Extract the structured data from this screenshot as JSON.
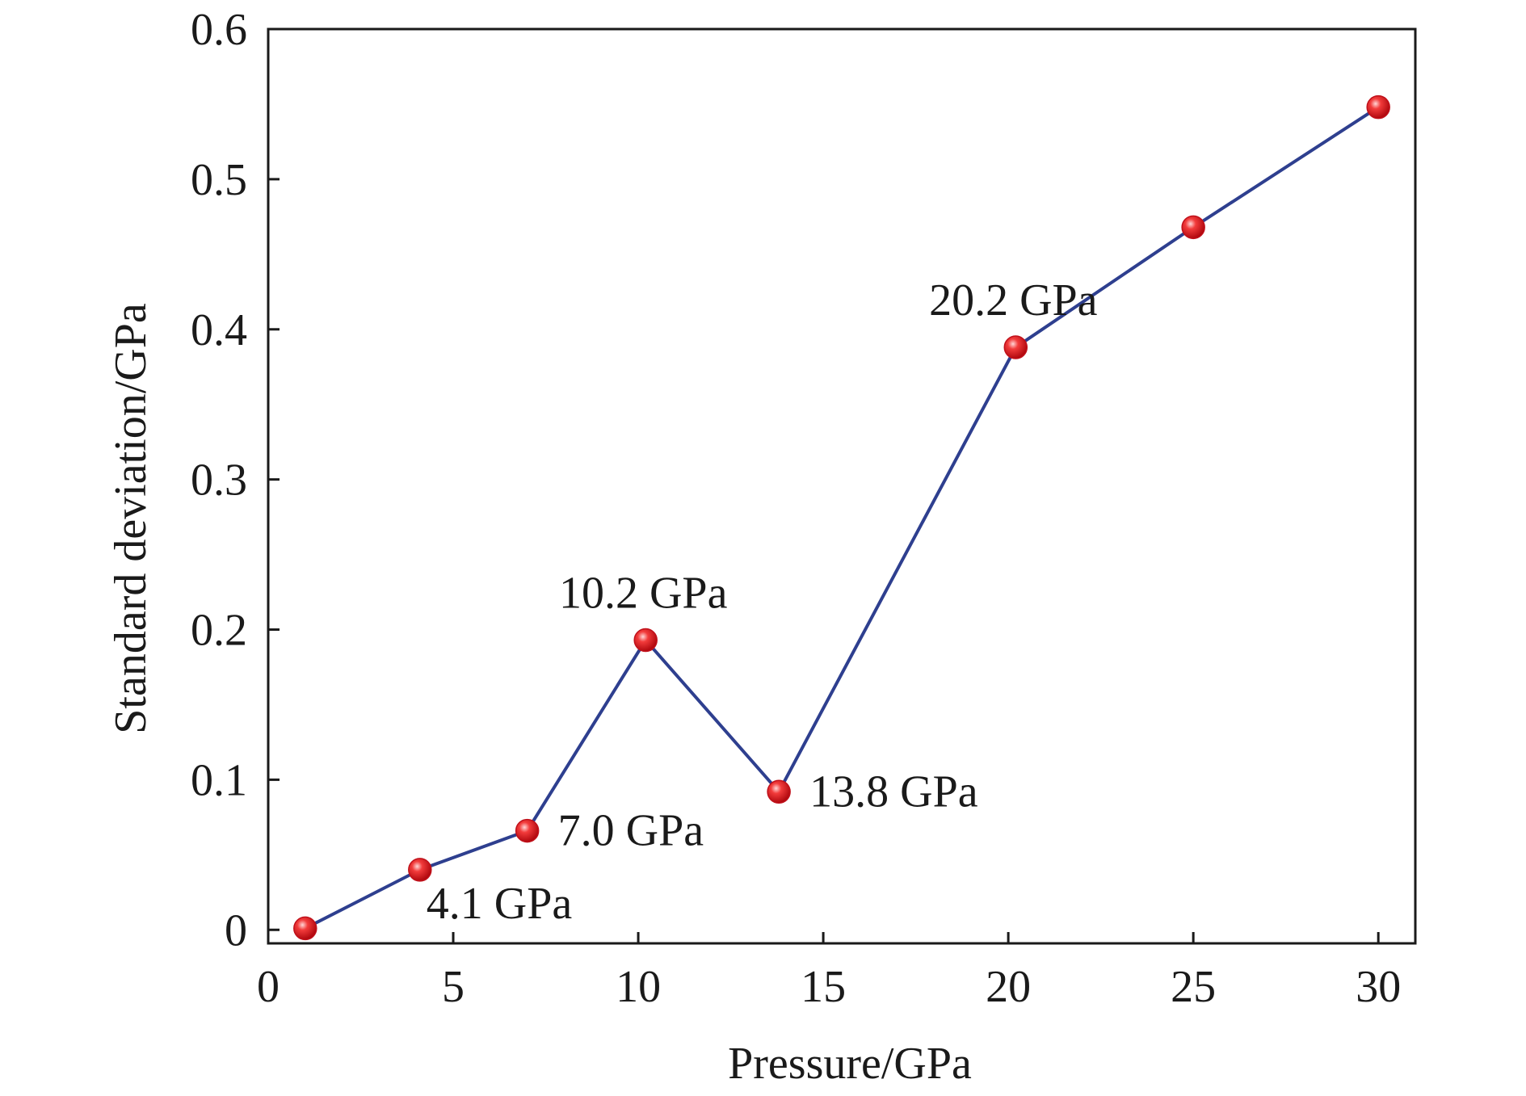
{
  "chart_data": {
    "type": "line",
    "xlabel": "Pressure/GPa",
    "ylabel": "Standard deviation/GPa",
    "xlim": [
      0,
      31
    ],
    "ylim": [
      -0.009,
      0.6
    ],
    "x_ticks": [
      0,
      5,
      10,
      15,
      20,
      25,
      30
    ],
    "y_ticks": [
      0,
      0.1,
      0.2,
      0.3,
      0.4,
      0.5,
      0.6
    ],
    "x_tick_labels": [
      "0",
      "5",
      "10",
      "15",
      "20",
      "25",
      "30"
    ],
    "y_tick_labels": [
      "0",
      "0.1",
      "0.2",
      "0.3",
      "0.4",
      "0.5",
      "0.6"
    ],
    "series": [
      {
        "x": [
          1.0,
          4.1,
          7.0,
          10.2,
          13.8,
          20.2,
          25.0,
          30.0
        ],
        "y": [
          0.001,
          0.04,
          0.066,
          0.193,
          0.092,
          0.388,
          0.468,
          0.548
        ],
        "color": "#2e3f8f",
        "marker_color": "#e8141e"
      }
    ],
    "annotations": [
      {
        "text": "4.1 GPa",
        "x": 4.1,
        "y": 0.04,
        "position": "below-right"
      },
      {
        "text": "7.0 GPa",
        "x": 7.0,
        "y": 0.066,
        "position": "right"
      },
      {
        "text": "10.2 GPa",
        "x": 10.2,
        "y": 0.193,
        "position": "above"
      },
      {
        "text": "13.8 GPa",
        "x": 13.8,
        "y": 0.092,
        "position": "right"
      },
      {
        "text": "20.2 GPa",
        "x": 20.2,
        "y": 0.388,
        "position": "above"
      }
    ],
    "grid": false,
    "legend": "none"
  }
}
